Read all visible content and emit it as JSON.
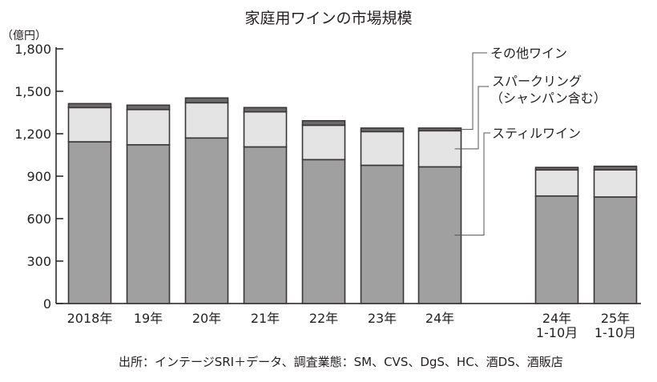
{
  "chart_data": {
    "type": "bar",
    "stacked": true,
    "title": "家庭用ワインの市場規模",
    "ylabel": "（億円）",
    "ylim": [
      0,
      1800
    ],
    "yticks": [
      "0",
      "300",
      "600",
      "900",
      "1,200",
      "1,500",
      "1,800"
    ],
    "ytick_values": [
      0,
      300,
      600,
      900,
      1200,
      1500,
      1800
    ],
    "categories": [
      {
        "label": "2018年",
        "sub": ""
      },
      {
        "label": "19年",
        "sub": ""
      },
      {
        "label": "20年",
        "sub": ""
      },
      {
        "label": "21年",
        "sub": ""
      },
      {
        "label": "22年",
        "sub": ""
      },
      {
        "label": "23年",
        "sub": ""
      },
      {
        "label": "24年",
        "sub": ""
      },
      {
        "label": "24年",
        "sub": "1-10月"
      },
      {
        "label": "25年",
        "sub": "1-10月"
      }
    ],
    "series": [
      {
        "name": "スティルワイン",
        "color": "#a0a0a0",
        "values": [
          1143,
          1122,
          1170,
          1107,
          1017,
          977,
          966,
          760,
          753
        ]
      },
      {
        "name": "スパークリング（シャンパン含む）",
        "name_lines": [
          "スパークリング",
          "（シャンパン含む）"
        ],
        "color": "#e4e4e5",
        "values": [
          242,
          249,
          249,
          248,
          243,
          238,
          255,
          184,
          192
        ]
      },
      {
        "name": "その他ワイン",
        "color": "#6b6a6a",
        "values": [
          28,
          31,
          34,
          30,
          32,
          25,
          19,
          18,
          25
        ]
      }
    ],
    "source": "出所：インテージSRI＋データ、調査業態：SM、CVS、DgS、HC、酒DS、酒販店",
    "grid": false,
    "legend": "right callouts"
  }
}
